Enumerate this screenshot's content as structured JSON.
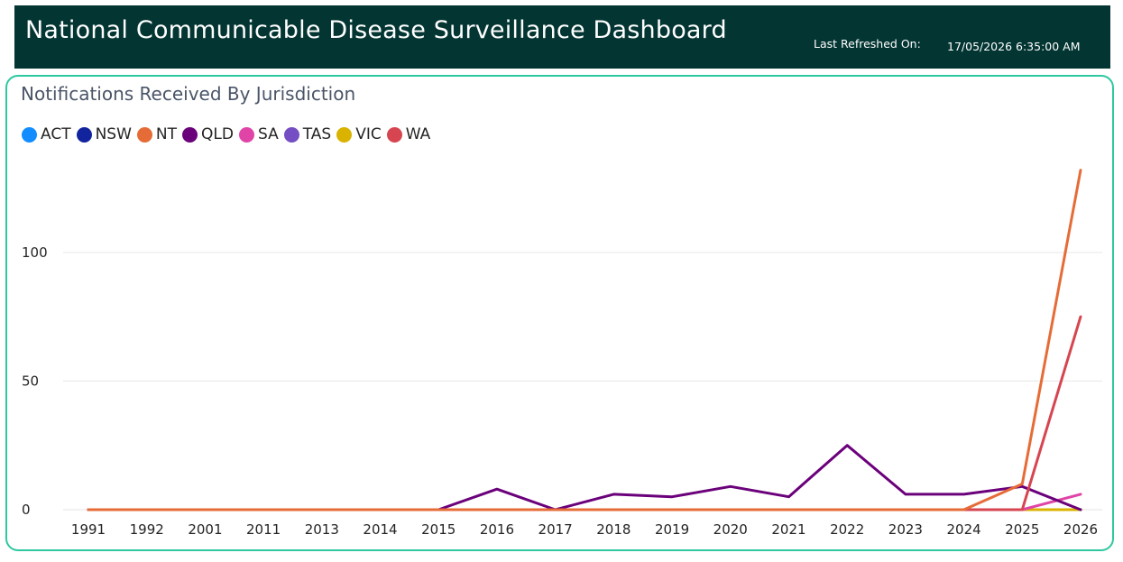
{
  "header": {
    "title": "National Communicable Disease Surveillance Dashboard",
    "refresh_label": "Last Refreshed On:",
    "refresh_value": "17/05/2026 6:35:00 AM",
    "background": "#033532"
  },
  "card": {
    "title": "Notifications Received By Jurisdiction",
    "border_color": "#2ec8a0"
  },
  "chart_data": {
    "type": "line",
    "title": "Notifications Received By Jurisdiction",
    "xlabel": "",
    "ylabel": "",
    "categories": [
      "1991",
      "1992",
      "2001",
      "2011",
      "2013",
      "2014",
      "2015",
      "2016",
      "2017",
      "2018",
      "2019",
      "2020",
      "2021",
      "2022",
      "2023",
      "2024",
      "2025",
      "2026"
    ],
    "ylim": [
      0,
      135
    ],
    "yticks": [
      0,
      50,
      100
    ],
    "grid": true,
    "legend_position": "top-left",
    "series": [
      {
        "name": "ACT",
        "color": "#118DFF",
        "values": [
          0,
          0,
          0,
          0,
          0,
          0,
          0,
          0,
          0,
          0,
          0,
          0,
          0,
          0,
          0,
          0,
          0,
          0
        ]
      },
      {
        "name": "NSW",
        "color": "#12239E",
        "values": [
          0,
          0,
          0,
          0,
          0,
          0,
          0,
          0,
          0,
          0,
          0,
          0,
          0,
          0,
          0,
          0,
          0,
          0
        ]
      },
      {
        "name": "NT",
        "color": "#E66C37",
        "values": [
          0,
          0,
          0,
          0,
          0,
          0,
          0,
          0,
          0,
          0,
          0,
          0,
          0,
          0,
          0,
          0,
          10,
          132
        ]
      },
      {
        "name": "QLD",
        "color": "#6B007B",
        "values": [
          0,
          0,
          0,
          0,
          0,
          0,
          0,
          8,
          0,
          6,
          5,
          9,
          5,
          25,
          6,
          6,
          9,
          0
        ]
      },
      {
        "name": "SA",
        "color": "#E044A7",
        "values": [
          0,
          0,
          0,
          0,
          0,
          0,
          0,
          0,
          0,
          0,
          0,
          0,
          0,
          0,
          0,
          0,
          0,
          6
        ]
      },
      {
        "name": "TAS",
        "color": "#744EC2",
        "values": [
          0,
          0,
          0,
          0,
          0,
          0,
          0,
          0,
          0,
          0,
          0,
          0,
          0,
          0,
          0,
          0,
          0,
          0
        ]
      },
      {
        "name": "VIC",
        "color": "#D9B300",
        "values": [
          0,
          0,
          0,
          0,
          0,
          0,
          0,
          0,
          0,
          0,
          0,
          0,
          0,
          0,
          0,
          0,
          0,
          0
        ]
      },
      {
        "name": "WA",
        "color": "#D64550",
        "values": [
          0,
          0,
          0,
          0,
          0,
          0,
          0,
          0,
          0,
          0,
          0,
          0,
          0,
          0,
          0,
          0,
          0,
          75
        ]
      }
    ]
  }
}
